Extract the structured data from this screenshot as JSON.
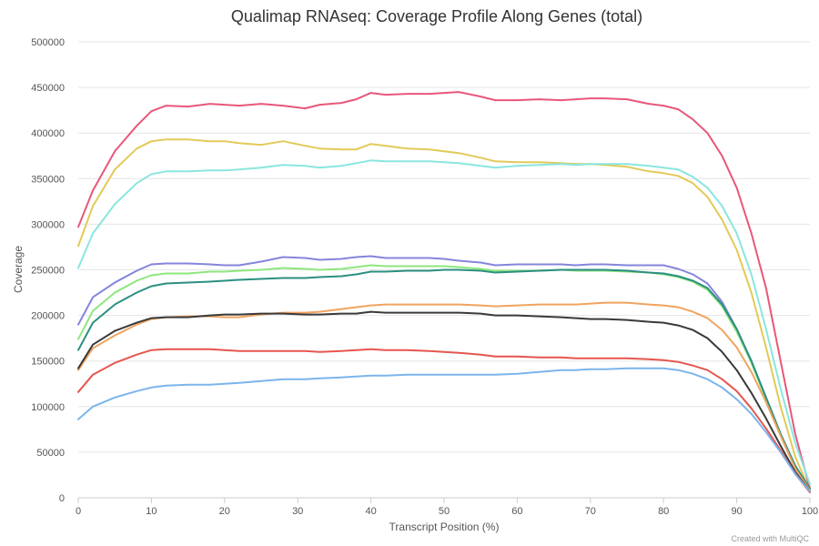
{
  "chart_data": {
    "type": "line",
    "title": "Qualimap RNAseq: Coverage Profile Along Genes (total)",
    "xlabel": "Transcript Position (%)",
    "ylabel": "Coverage",
    "xlim": [
      0,
      100
    ],
    "ylim": [
      0,
      500000
    ],
    "x_ticks": [
      "0",
      "10",
      "20",
      "30",
      "40",
      "50",
      "60",
      "70",
      "80",
      "90",
      "100"
    ],
    "y_ticks": [
      "0",
      "50000",
      "100000",
      "150000",
      "200000",
      "250000",
      "300000",
      "350000",
      "400000",
      "450000",
      "500000"
    ],
    "grid": true,
    "legend": "none",
    "x": [
      0,
      2,
      5,
      8,
      10,
      12,
      15,
      18,
      20,
      22,
      25,
      28,
      31,
      33,
      36,
      38,
      40,
      42,
      45,
      48,
      50,
      52,
      55,
      57,
      60,
      63,
      66,
      68,
      70,
      72,
      75,
      78,
      80,
      82,
      84,
      86,
      88,
      90,
      92,
      94,
      96,
      98,
      100
    ],
    "series": [
      {
        "color": "#e8577a",
        "values": [
          297000,
          337000,
          380000,
          408000,
          424000,
          430000,
          429000,
          432000,
          431000,
          430000,
          432000,
          430000,
          427000,
          431000,
          433000,
          437000,
          444000,
          442000,
          443000,
          443000,
          444000,
          445000,
          440000,
          436000,
          436000,
          437000,
          436000,
          437000,
          438000,
          438000,
          437000,
          432000,
          430000,
          426000,
          415000,
          400000,
          375000,
          340000,
          290000,
          230000,
          150000,
          70000,
          10000
        ]
      },
      {
        "color": "#e2ca58",
        "values": [
          276000,
          320000,
          360000,
          383000,
          391000,
          393000,
          393000,
          391000,
          391000,
          389000,
          387000,
          391000,
          386000,
          383000,
          382000,
          382000,
          388000,
          386000,
          383000,
          382000,
          380000,
          378000,
          373000,
          369000,
          368000,
          368000,
          367000,
          366000,
          366000,
          365000,
          363000,
          358000,
          356000,
          353000,
          345000,
          330000,
          305000,
          272000,
          225000,
          165000,
          100000,
          45000,
          8000
        ]
      },
      {
        "color": "#8ae6df",
        "values": [
          252000,
          290000,
          322000,
          345000,
          355000,
          358000,
          358000,
          359000,
          359000,
          360000,
          362000,
          365000,
          364000,
          362000,
          364000,
          367000,
          370000,
          369000,
          369000,
          369000,
          368000,
          367000,
          364000,
          362000,
          364000,
          365000,
          366000,
          365000,
          366000,
          366000,
          366000,
          364000,
          362000,
          360000,
          352000,
          340000,
          320000,
          290000,
          245000,
          185000,
          120000,
          60000,
          15000
        ]
      },
      {
        "color": "#8585dc",
        "values": [
          190000,
          220000,
          236000,
          249000,
          256000,
          257000,
          257000,
          256000,
          255000,
          255000,
          259000,
          264000,
          263000,
          261000,
          262000,
          264000,
          265000,
          263000,
          263000,
          263000,
          262000,
          260000,
          258000,
          255000,
          256000,
          256000,
          256000,
          255000,
          256000,
          256000,
          255000,
          255000,
          255000,
          251000,
          245000,
          235000,
          215000,
          185000,
          150000,
          110000,
          70000,
          35000,
          10000
        ]
      },
      {
        "color": "#8ee67e",
        "values": [
          174000,
          205000,
          225000,
          238000,
          244000,
          246000,
          246000,
          248000,
          248000,
          249000,
          250000,
          252000,
          251000,
          250000,
          251000,
          253000,
          255000,
          254000,
          254000,
          254000,
          254000,
          253000,
          251000,
          249000,
          249000,
          249000,
          250000,
          249000,
          249000,
          249000,
          248000,
          247000,
          245000,
          242000,
          237000,
          228000,
          210000,
          182000,
          148000,
          108000,
          68000,
          32000,
          8000
        ]
      },
      {
        "color": "#2b8f80",
        "values": [
          162000,
          192000,
          212000,
          225000,
          232000,
          235000,
          236000,
          237000,
          238000,
          239000,
          240000,
          241000,
          241000,
          242000,
          243000,
          245000,
          248000,
          248000,
          249000,
          249000,
          250000,
          250000,
          249000,
          247000,
          248000,
          249000,
          250000,
          250000,
          250000,
          250000,
          249000,
          247000,
          246000,
          243000,
          238000,
          230000,
          212000,
          185000,
          150000,
          110000,
          70000,
          35000,
          10000
        ]
      },
      {
        "color": "#f0a460",
        "values": [
          140000,
          164000,
          178000,
          190000,
          196000,
          198000,
          199000,
          199000,
          198000,
          198000,
          201000,
          203000,
          203000,
          204000,
          207000,
          209000,
          211000,
          212000,
          212000,
          212000,
          212000,
          212000,
          211000,
          210000,
          211000,
          212000,
          212000,
          212000,
          213000,
          214000,
          214000,
          212000,
          211000,
          209000,
          204000,
          197000,
          184000,
          165000,
          138000,
          105000,
          68000,
          32000,
          8000
        ]
      },
      {
        "color": "#3a3a3a",
        "values": [
          142000,
          168000,
          183000,
          192000,
          197000,
          198000,
          198000,
          200000,
          201000,
          201000,
          202000,
          202000,
          201000,
          201000,
          202000,
          202000,
          204000,
          203000,
          203000,
          203000,
          203000,
          203000,
          202000,
          200000,
          200000,
          199000,
          198000,
          197000,
          196000,
          196000,
          195000,
          193000,
          192000,
          189000,
          184000,
          175000,
          160000,
          140000,
          115000,
          87000,
          57000,
          28000,
          7000
        ]
      },
      {
        "color": "#e5564f",
        "values": [
          116000,
          135000,
          148000,
          157000,
          162000,
          163000,
          163000,
          163000,
          162000,
          161000,
          161000,
          161000,
          161000,
          160000,
          161000,
          162000,
          163000,
          162000,
          162000,
          161000,
          160000,
          159000,
          157000,
          155000,
          155000,
          154000,
          154000,
          153000,
          153000,
          153000,
          153000,
          152000,
          151000,
          149000,
          145000,
          140000,
          130000,
          117000,
          98000,
          76000,
          52000,
          26000,
          6000
        ]
      },
      {
        "color": "#7cb5ec",
        "values": [
          86000,
          100000,
          110000,
          117000,
          121000,
          123000,
          124000,
          124000,
          125000,
          126000,
          128000,
          130000,
          130000,
          131000,
          132000,
          133000,
          134000,
          134000,
          135000,
          135000,
          135000,
          135000,
          135000,
          135000,
          136000,
          138000,
          140000,
          140000,
          141000,
          141000,
          142000,
          142000,
          142000,
          140000,
          136000,
          130000,
          121000,
          108000,
          92000,
          72000,
          50000,
          26000,
          7000
        ]
      }
    ]
  },
  "credit": "Created with MultiQC"
}
